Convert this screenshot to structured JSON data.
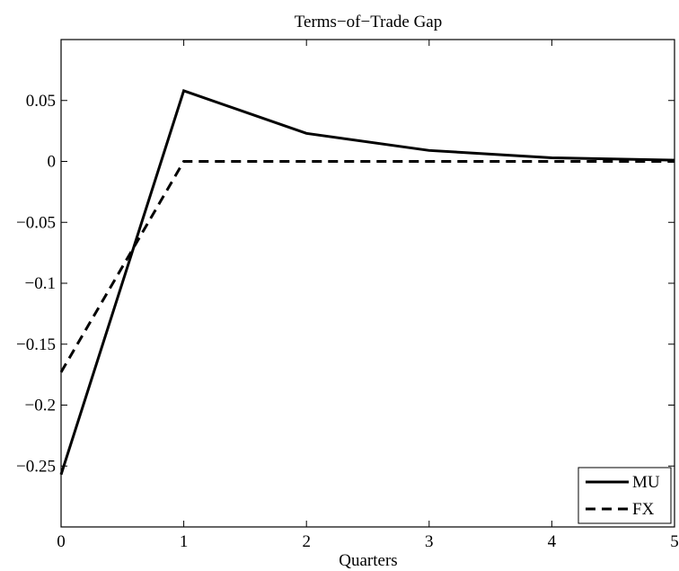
{
  "chart_data": {
    "type": "line",
    "title": "Terms−of−Trade Gap",
    "xlabel": "Quarters",
    "ylabel": "",
    "xlim": [
      0,
      5
    ],
    "ylim": [
      -0.3,
      0.1
    ],
    "x_ticks": [
      0,
      1,
      2,
      3,
      4,
      5
    ],
    "x_tick_labels": [
      "0",
      "1",
      "2",
      "3",
      "4",
      "5"
    ],
    "y_ticks": [
      0.05,
      0,
      -0.05,
      -0.1,
      -0.15,
      -0.2,
      -0.25
    ],
    "y_tick_labels": [
      "0.05",
      "0",
      "−0.05",
      "−0.1",
      "−0.15",
      "−0.2",
      "−0.25"
    ],
    "grid": false,
    "legend_position": "bottom-right",
    "x": [
      0,
      1,
      2,
      3,
      4,
      5
    ],
    "series": [
      {
        "name": "MU",
        "style": "solid",
        "color": "#000000",
        "values": [
          -0.257,
          0.058,
          0.023,
          0.009,
          0.003,
          0.001
        ]
      },
      {
        "name": "FX",
        "style": "dashed",
        "color": "#000000",
        "values": [
          -0.173,
          0.0,
          0.0,
          0.0,
          0.0,
          0.0
        ]
      }
    ]
  }
}
